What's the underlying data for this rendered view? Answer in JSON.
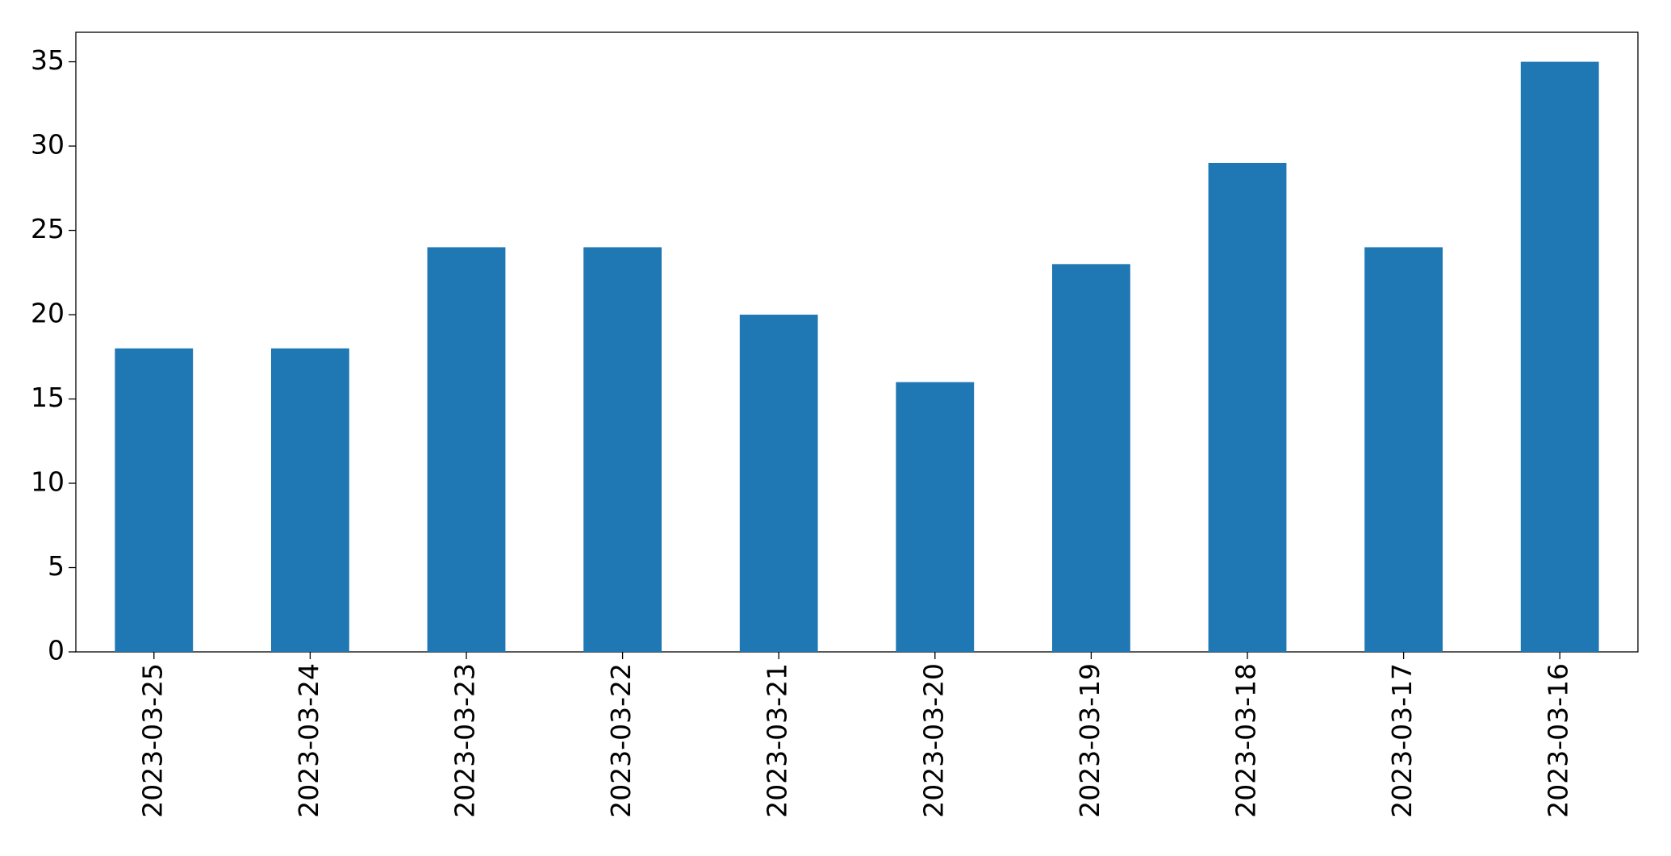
{
  "chart_data": {
    "type": "bar",
    "categories": [
      "2023-03-25",
      "2023-03-24",
      "2023-03-23",
      "2023-03-22",
      "2023-03-21",
      "2023-03-20",
      "2023-03-19",
      "2023-03-18",
      "2023-03-17",
      "2023-03-16"
    ],
    "values": [
      18,
      18,
      24,
      24,
      20,
      16,
      23,
      29,
      24,
      35
    ],
    "color": "#1f77b4",
    "ylim": [
      0,
      36.75
    ],
    "yticks": [
      0,
      5,
      10,
      15,
      20,
      25,
      30,
      35
    ],
    "grid": false
  }
}
